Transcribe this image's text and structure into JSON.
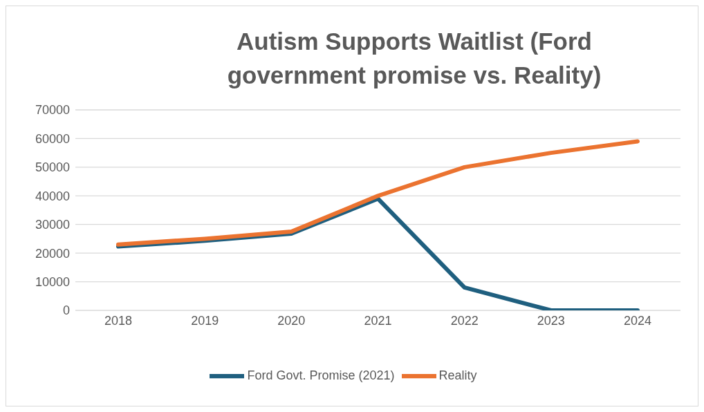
{
  "chart_data": {
    "type": "line",
    "title": "Autism Supports Waitlist (Ford government promise vs. Reality)",
    "categories": [
      "2018",
      "2019",
      "2020",
      "2021",
      "2022",
      "2023",
      "2024"
    ],
    "series": [
      {
        "name": "Ford Govt. Promise (2021)",
        "color": "#1f5f7f",
        "values": [
          22300,
          24300,
          26800,
          39000,
          8000,
          0,
          0
        ]
      },
      {
        "name": "Reality",
        "color": "#eb7330",
        "values": [
          23000,
          25000,
          27500,
          40000,
          50000,
          55000,
          59000
        ]
      }
    ],
    "ylim": [
      0,
      70000
    ],
    "yticks": [
      0,
      10000,
      20000,
      30000,
      40000,
      50000,
      60000,
      70000
    ],
    "grid": "y",
    "legend": "bottom",
    "marker": "none",
    "line_style": "solid"
  }
}
